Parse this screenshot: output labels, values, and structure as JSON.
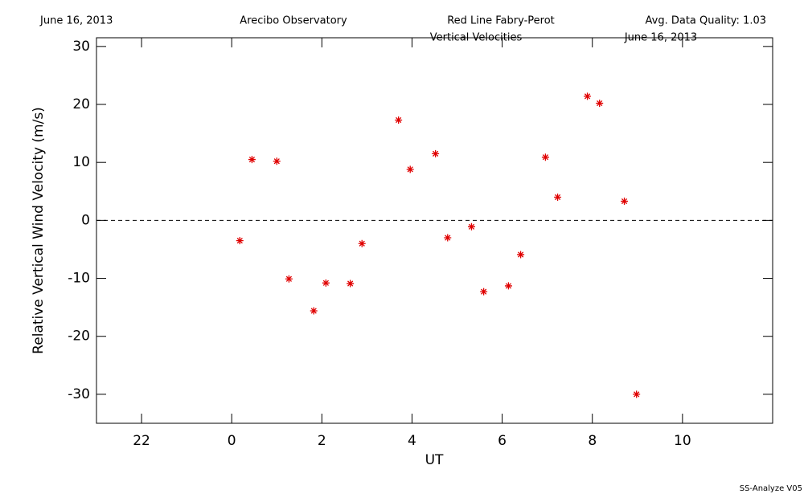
{
  "chart_data": {
    "type": "scatter",
    "header_left": "June 16, 2013",
    "header_center_left": "Arecibo Observatory",
    "header_center_right": "Red Line Fabry-Perot",
    "header_right": "Avg. Data Quality: 1.03",
    "title": "Vertical Velocities",
    "title_date": "June 16, 2013",
    "footer": "SS-Analyze V05",
    "x_label": "UT",
    "y_label": "Relative Vertical Wind Velocity (m/s)",
    "color": "#e00000",
    "x": [
      0.18,
      0.45,
      1.0,
      1.27,
      1.82,
      2.09,
      2.63,
      2.89,
      3.7,
      3.96,
      4.52,
      4.79,
      5.32,
      5.59,
      6.14,
      6.41,
      6.96,
      7.23,
      7.89,
      8.16,
      8.71,
      8.98
    ],
    "values": [
      -3.5,
      10.5,
      10.2,
      -10.1,
      -15.6,
      -10.8,
      -10.9,
      -4.0,
      17.3,
      8.8,
      11.5,
      -3.0,
      -1.1,
      -12.3,
      -11.3,
      -5.9,
      10.9,
      4.0,
      21.4,
      20.2,
      3.3,
      -30.0
    ],
    "reference_line": 0,
    "xlim": [
      -3,
      12
    ],
    "xticks": [
      {
        "value": -2,
        "label": "22"
      },
      0,
      2,
      4,
      6,
      8,
      10
    ],
    "ylim": [
      -35,
      31.5
    ],
    "yticks": [
      -30,
      -20,
      -10,
      0,
      10,
      20,
      30
    ]
  }
}
